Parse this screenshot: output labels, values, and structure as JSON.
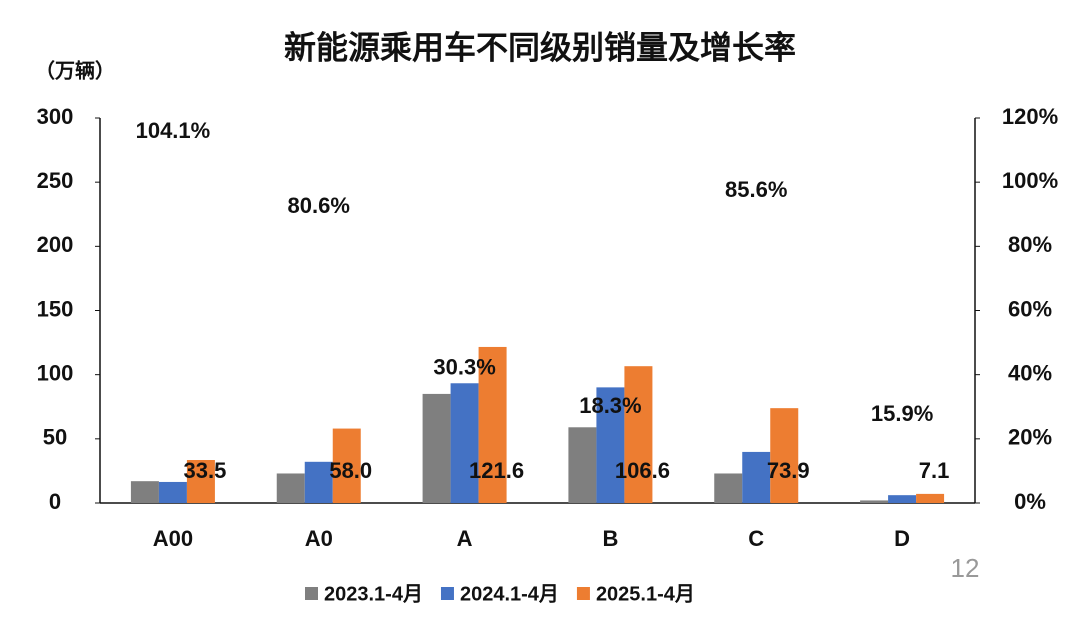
{
  "chart_data": {
    "type": "bar",
    "title": "新能源乘用车不同级别销量及增长率",
    "y_label": "（万辆）",
    "page_number": "12",
    "categories": [
      "A00",
      "A0",
      "A",
      "B",
      "C",
      "D"
    ],
    "series": [
      {
        "name": "2023.1-4月",
        "color": "#7f7f7f",
        "values": [
          17,
          23,
          85,
          59,
          23,
          2
        ]
      },
      {
        "name": "2024.1-4月",
        "color": "#4472c4",
        "values": [
          16.4,
          32.1,
          93.3,
          90.1,
          39.8,
          6.1
        ]
      },
      {
        "name": "2025.1-4月",
        "color": "#ed7d31",
        "values": [
          33.5,
          58.0,
          121.6,
          106.6,
          73.9,
          7.1
        ],
        "value_labels": [
          "33.5",
          "58.0",
          "121.6",
          "106.6",
          "73.9",
          "7.1"
        ]
      },
      {
        "name": "增长率",
        "axis": "y2",
        "values": [
          104.1,
          80.6,
          30.3,
          18.3,
          85.6,
          15.9
        ],
        "value_labels": [
          "104.1%",
          "80.6%",
          "30.3%",
          "18.3%",
          "85.6%",
          "15.9%"
        ]
      }
    ],
    "ylim": [
      0,
      300
    ],
    "yticks": [
      0,
      50,
      100,
      150,
      200,
      250,
      300
    ],
    "y2lim": [
      0,
      120
    ],
    "y2ticks": [
      {
        "value": 0,
        "label": "0%"
      },
      {
        "value": 20,
        "label": "20%"
      },
      {
        "value": 40,
        "label": "40%"
      },
      {
        "value": 60,
        "label": "60%"
      },
      {
        "value": 80,
        "label": "80%"
      },
      {
        "value": 100,
        "label": "100%"
      },
      {
        "value": 120,
        "label": "120%"
      }
    ],
    "legend": "bottom"
  }
}
